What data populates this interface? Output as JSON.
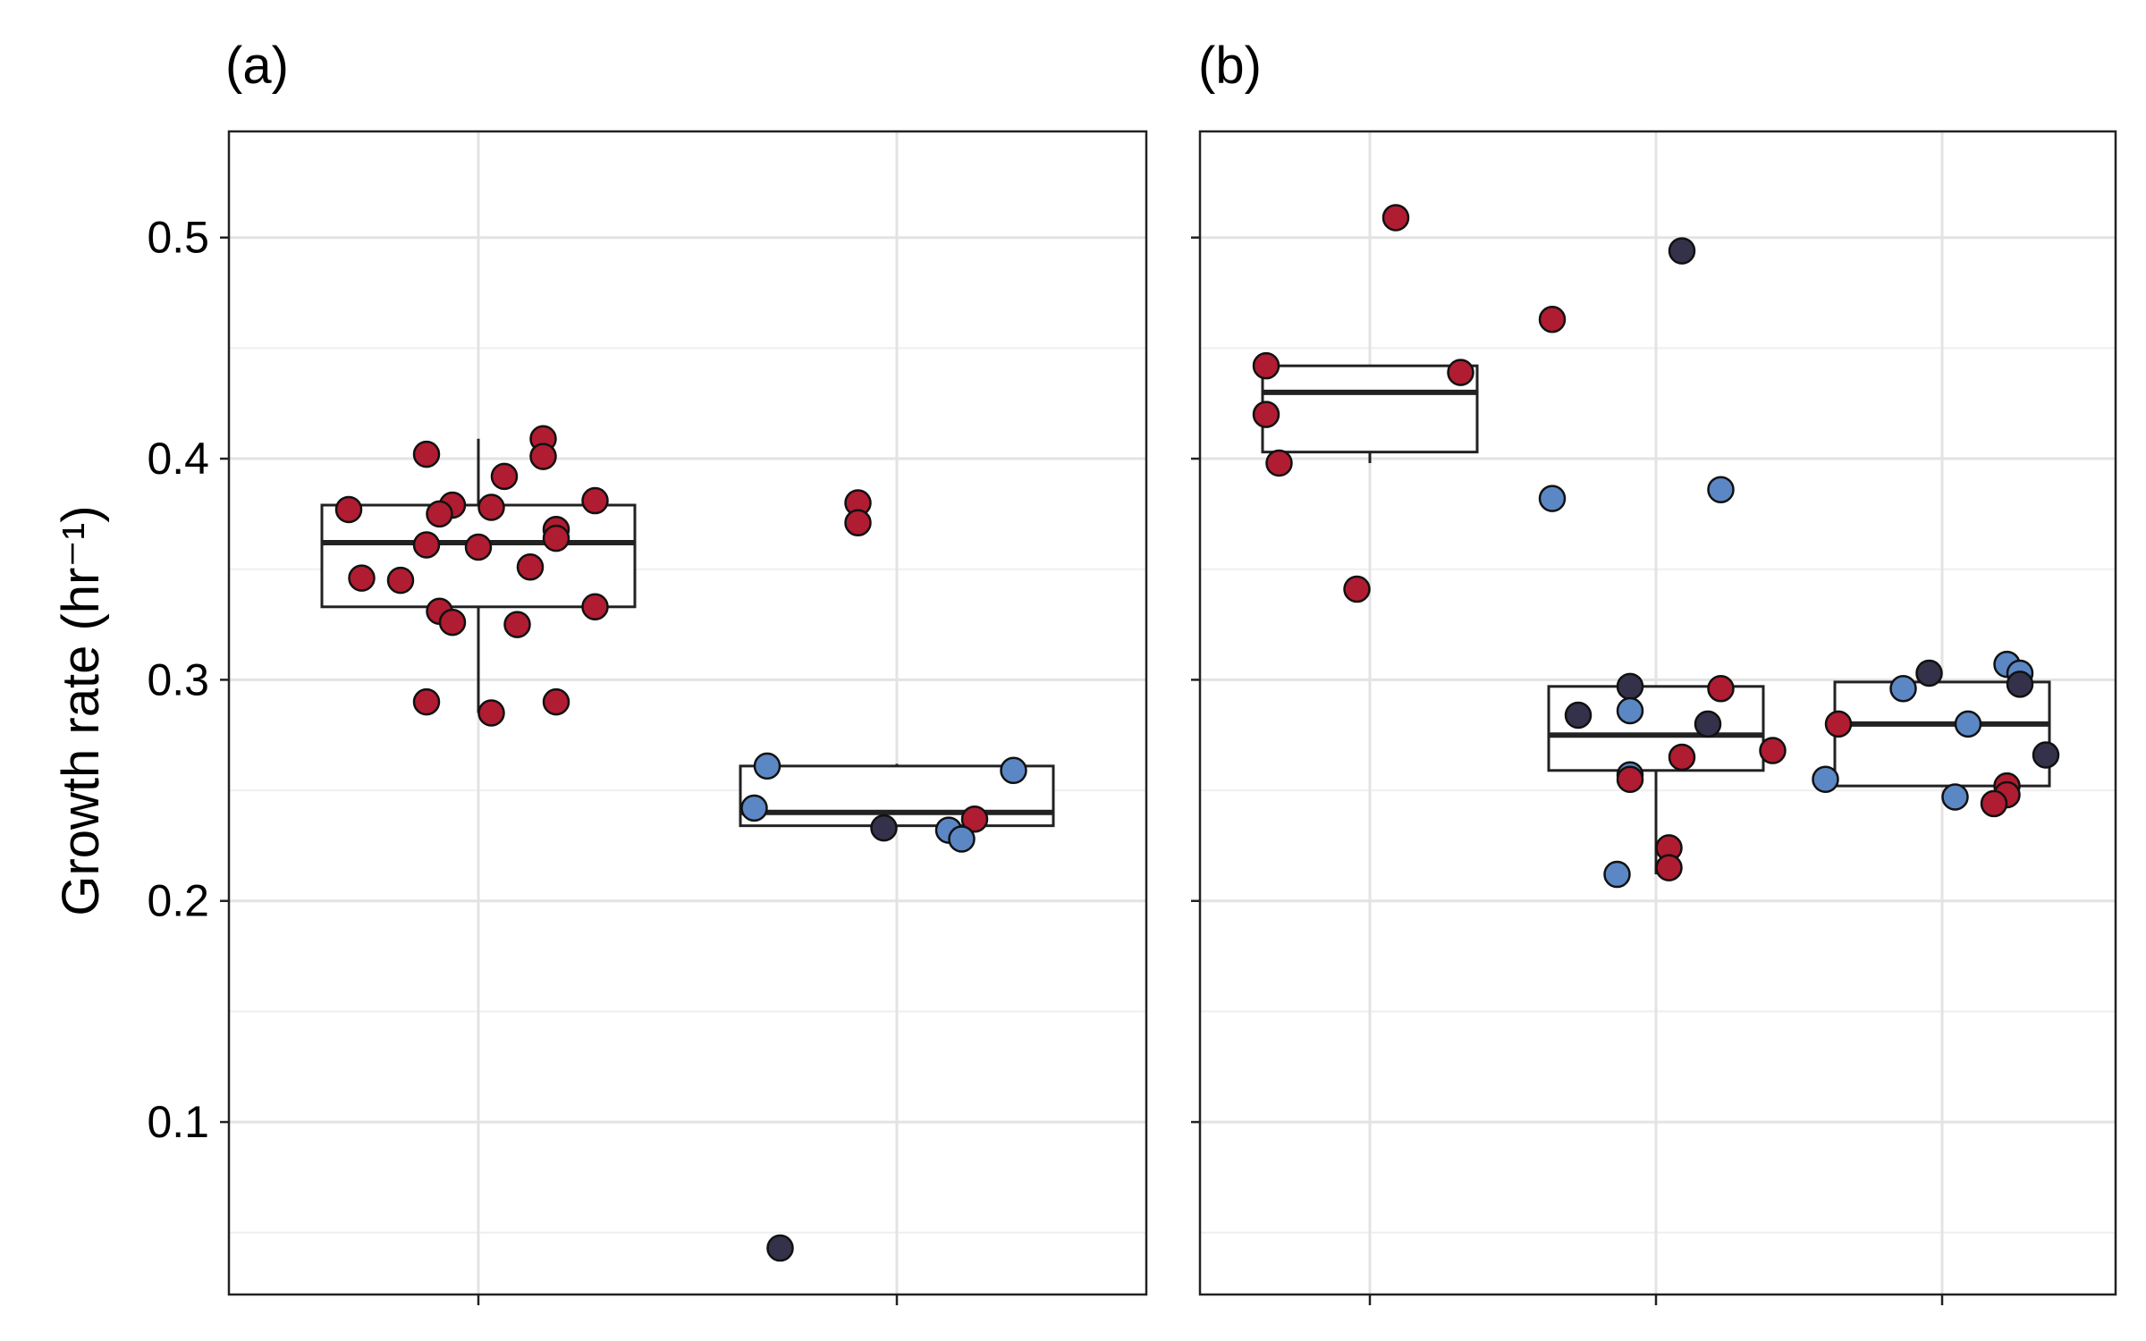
{
  "colors": {
    "red": "#b01c31",
    "blue": "#5b87c5",
    "dark": "#34324a"
  },
  "chart_data": [
    {
      "type": "box",
      "panel_label": "(a)",
      "ylabel": "Growth rate (hr⁻¹)",
      "xlabel": "",
      "ylim": [
        0.022,
        0.548
      ],
      "yticks": [
        0.1,
        0.2,
        0.3,
        0.4,
        0.5
      ],
      "ytick_labels": [
        "0.1",
        "0.2",
        "0.3",
        "0.4",
        "0.5"
      ],
      "grid": true,
      "legend": "none",
      "groups": [
        {
          "box": {
            "q1": 0.333,
            "median": 0.362,
            "q3": 0.379,
            "whisker_low": 0.285,
            "whisker_high": 0.409
          },
          "points": [
            {
              "dx": -0.04,
              "y": 0.402,
              "c": "red"
            },
            {
              "dx": 0.05,
              "y": 0.409,
              "c": "red"
            },
            {
              "dx": 0.05,
              "y": 0.401,
              "c": "red"
            },
            {
              "dx": 0.02,
              "y": 0.392,
              "c": "red"
            },
            {
              "dx": 0.09,
              "y": 0.381,
              "c": "red"
            },
            {
              "dx": -0.1,
              "y": 0.377,
              "c": "red"
            },
            {
              "dx": -0.02,
              "y": 0.379,
              "c": "red"
            },
            {
              "dx": 0.01,
              "y": 0.378,
              "c": "red"
            },
            {
              "dx": -0.03,
              "y": 0.375,
              "c": "red"
            },
            {
              "dx": 0.06,
              "y": 0.368,
              "c": "red"
            },
            {
              "dx": 0.06,
              "y": 0.364,
              "c": "red"
            },
            {
              "dx": -0.04,
              "y": 0.361,
              "c": "red"
            },
            {
              "dx": 0.0,
              "y": 0.36,
              "c": "red"
            },
            {
              "dx": 0.04,
              "y": 0.351,
              "c": "red"
            },
            {
              "dx": -0.09,
              "y": 0.346,
              "c": "red"
            },
            {
              "dx": -0.06,
              "y": 0.345,
              "c": "red"
            },
            {
              "dx": 0.09,
              "y": 0.333,
              "c": "red"
            },
            {
              "dx": -0.03,
              "y": 0.331,
              "c": "red"
            },
            {
              "dx": -0.02,
              "y": 0.326,
              "c": "red"
            },
            {
              "dx": 0.03,
              "y": 0.325,
              "c": "red"
            },
            {
              "dx": -0.04,
              "y": 0.29,
              "c": "red"
            },
            {
              "dx": 0.06,
              "y": 0.29,
              "c": "red"
            },
            {
              "dx": 0.01,
              "y": 0.285,
              "c": "red"
            }
          ]
        },
        {
          "box": {
            "q1": 0.234,
            "median": 0.24,
            "q3": 0.261,
            "whisker_low": 0.234,
            "whisker_high": 0.262
          },
          "points": [
            {
              "dx": -0.03,
              "y": 0.38,
              "c": "red"
            },
            {
              "dx": -0.03,
              "y": 0.371,
              "c": "red"
            },
            {
              "dx": -0.1,
              "y": 0.261,
              "c": "blue"
            },
            {
              "dx": 0.09,
              "y": 0.259,
              "c": "blue"
            },
            {
              "dx": -0.11,
              "y": 0.242,
              "c": "blue"
            },
            {
              "dx": 0.06,
              "y": 0.237,
              "c": "red"
            },
            {
              "dx": 0.04,
              "y": 0.232,
              "c": "blue"
            },
            {
              "dx": -0.01,
              "y": 0.233,
              "c": "dark"
            },
            {
              "dx": 0.05,
              "y": 0.228,
              "c": "blue"
            },
            {
              "dx": -0.09,
              "y": 0.043,
              "c": "dark"
            }
          ]
        }
      ]
    },
    {
      "type": "box",
      "panel_label": "(b)",
      "ylabel": "",
      "xlabel": "",
      "ylim": [
        0.022,
        0.548
      ],
      "yticks": [
        0.1,
        0.2,
        0.3,
        0.4,
        0.5
      ],
      "ytick_labels": [],
      "grid": true,
      "legend": "none",
      "groups": [
        {
          "box": {
            "q1": 0.403,
            "median": 0.43,
            "q3": 0.442,
            "whisker_low": 0.398,
            "whisker_high": 0.442
          },
          "points": [
            {
              "dx": 0.02,
              "y": 0.509,
              "c": "red"
            },
            {
              "dx": -0.08,
              "y": 0.442,
              "c": "red"
            },
            {
              "dx": 0.07,
              "y": 0.439,
              "c": "red"
            },
            {
              "dx": -0.08,
              "y": 0.42,
              "c": "red"
            },
            {
              "dx": -0.07,
              "y": 0.398,
              "c": "red"
            },
            {
              "dx": -0.01,
              "y": 0.341,
              "c": "red"
            }
          ]
        },
        {
          "box": {
            "q1": 0.259,
            "median": 0.275,
            "q3": 0.297,
            "whisker_low": 0.212,
            "whisker_high": 0.297
          },
          "points": [
            {
              "dx": 0.02,
              "y": 0.494,
              "c": "dark"
            },
            {
              "dx": -0.08,
              "y": 0.463,
              "c": "red"
            },
            {
              "dx": 0.05,
              "y": 0.386,
              "c": "blue"
            },
            {
              "dx": -0.08,
              "y": 0.382,
              "c": "blue"
            },
            {
              "dx": -0.02,
              "y": 0.297,
              "c": "dark"
            },
            {
              "dx": 0.05,
              "y": 0.296,
              "c": "red"
            },
            {
              "dx": -0.06,
              "y": 0.284,
              "c": "dark"
            },
            {
              "dx": -0.02,
              "y": 0.286,
              "c": "blue"
            },
            {
              "dx": 0.04,
              "y": 0.28,
              "c": "dark"
            },
            {
              "dx": 0.09,
              "y": 0.268,
              "c": "red"
            },
            {
              "dx": 0.02,
              "y": 0.265,
              "c": "red"
            },
            {
              "dx": -0.02,
              "y": 0.257,
              "c": "blue"
            },
            {
              "dx": -0.02,
              "y": 0.255,
              "c": "red"
            },
            {
              "dx": 0.01,
              "y": 0.224,
              "c": "red"
            },
            {
              "dx": 0.01,
              "y": 0.215,
              "c": "red"
            },
            {
              "dx": -0.03,
              "y": 0.212,
              "c": "blue"
            }
          ]
        },
        {
          "box": {
            "q1": 0.252,
            "median": 0.28,
            "q3": 0.299,
            "whisker_low": 0.252,
            "whisker_high": 0.299
          },
          "points": [
            {
              "dx": 0.05,
              "y": 0.307,
              "c": "blue"
            },
            {
              "dx": 0.06,
              "y": 0.303,
              "c": "blue"
            },
            {
              "dx": -0.01,
              "y": 0.303,
              "c": "dark"
            },
            {
              "dx": -0.03,
              "y": 0.296,
              "c": "blue"
            },
            {
              "dx": 0.06,
              "y": 0.298,
              "c": "dark"
            },
            {
              "dx": -0.08,
              "y": 0.28,
              "c": "red"
            },
            {
              "dx": 0.02,
              "y": 0.28,
              "c": "blue"
            },
            {
              "dx": 0.08,
              "y": 0.266,
              "c": "dark"
            },
            {
              "dx": -0.09,
              "y": 0.255,
              "c": "blue"
            },
            {
              "dx": 0.05,
              "y": 0.252,
              "c": "red"
            },
            {
              "dx": 0.01,
              "y": 0.247,
              "c": "blue"
            },
            {
              "dx": 0.05,
              "y": 0.248,
              "c": "red"
            },
            {
              "dx": 0.04,
              "y": 0.244,
              "c": "red"
            }
          ]
        }
      ]
    }
  ]
}
